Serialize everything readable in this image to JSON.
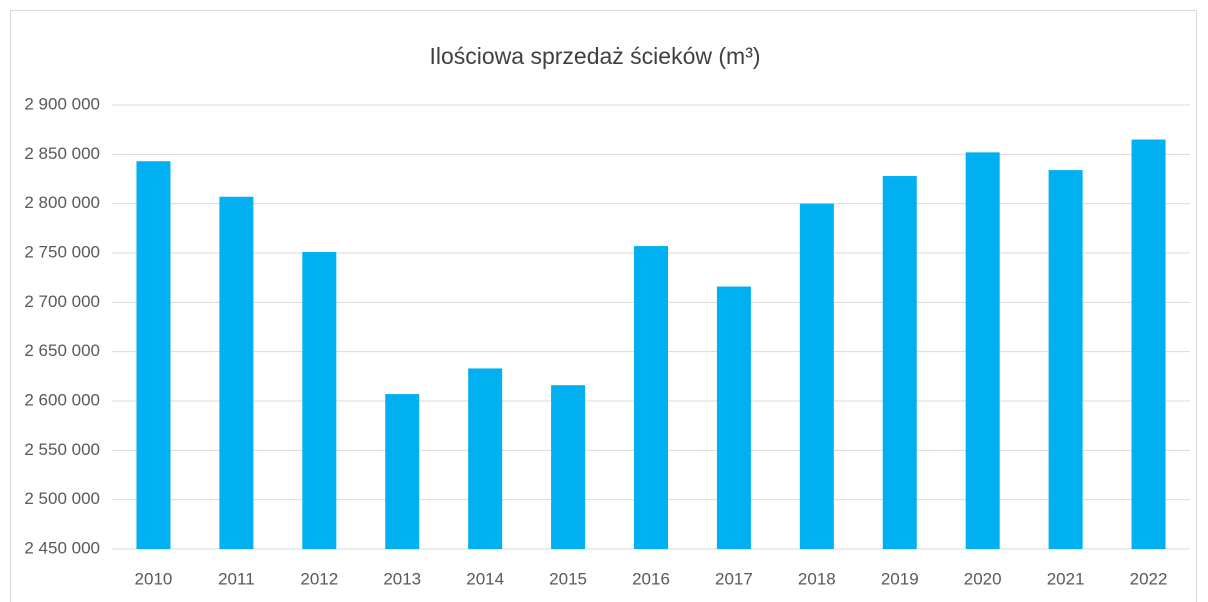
{
  "chart_data": {
    "type": "bar",
    "title": "Ilościowa sprzedaż ścieków (m³)",
    "categories": [
      "2010",
      "2011",
      "2012",
      "2013",
      "2014",
      "2015",
      "2016",
      "2017",
      "2018",
      "2019",
      "2020",
      "2021",
      "2022"
    ],
    "values": [
      2843000,
      2807000,
      2751000,
      2607000,
      2633000,
      2616000,
      2757000,
      2716000,
      2800000,
      2828000,
      2852000,
      2834000,
      2865000
    ],
    "color": "#00b0f0",
    "ylim": [
      2450000,
      2900000
    ],
    "yticks": [
      {
        "value": 2450000,
        "label": "2 450 000"
      },
      {
        "value": 2500000,
        "label": "2 500 000"
      },
      {
        "value": 2550000,
        "label": "2 550 000"
      },
      {
        "value": 2600000,
        "label": "2 600 000"
      },
      {
        "value": 2650000,
        "label": "2 650 000"
      },
      {
        "value": 2700000,
        "label": "2 700 000"
      },
      {
        "value": 2750000,
        "label": "2 750 000"
      },
      {
        "value": 2800000,
        "label": "2 800 000"
      },
      {
        "value": 2850000,
        "label": "2 850 000"
      },
      {
        "value": 2900000,
        "label": "2 900 000"
      }
    ],
    "grid": true
  }
}
